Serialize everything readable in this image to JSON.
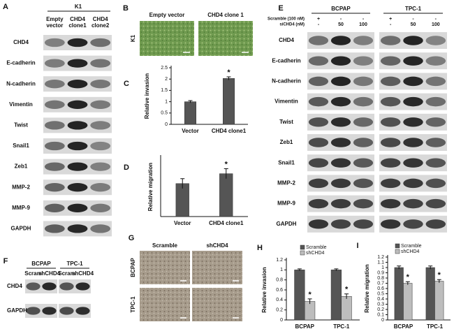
{
  "panels": {
    "a": {
      "label": "A",
      "header": "K1",
      "columns": [
        "Empty vector",
        "CHD4 clone1",
        "CHD4 clone2"
      ],
      "rows": [
        "CHD4",
        "E-cadherin",
        "N-cadherin",
        "Vimentin",
        "Twist",
        "Snail1",
        "Zeb1",
        "MMP-2",
        "MMP-9",
        "GAPDH"
      ]
    },
    "b": {
      "label": "B",
      "columns": [
        "Empty vector",
        "CHD4 clone 1"
      ],
      "row": "K1"
    },
    "e": {
      "label": "E",
      "groups": [
        "BCPAP",
        "TPC-1"
      ],
      "conditions": [
        {
          "name": "Scramble (100 nM)",
          "lanes": [
            "+",
            "-",
            "-"
          ]
        },
        {
          "name": "siCHD4 (nM)",
          "lanes": [
            "-",
            "50",
            "100"
          ]
        }
      ],
      "rows": [
        "CHD4",
        "E-cadherin",
        "N-cadherin",
        "Vimentin",
        "Twist",
        "Zeb1",
        "Snail1",
        "MMP-2",
        "MMP-9",
        "GAPDH"
      ]
    },
    "f": {
      "label": "F",
      "groups": [
        "BCPAP",
        "TPC-1"
      ],
      "lanes": [
        "Scram",
        "shCHD4",
        "Scram",
        "shCHD4"
      ],
      "rows": [
        "CHD4",
        "GAPDH"
      ]
    },
    "g": {
      "label": "G",
      "columns": [
        "Scramble",
        "shCHD4"
      ],
      "rows": [
        "BCPAP",
        "TPC-1"
      ]
    }
  },
  "chart_data": [
    {
      "type": "bar",
      "panel_label": "C",
      "y_label": "Relative invasion",
      "categories": [
        "Vector",
        "CHD4 clone1"
      ],
      "series": [
        {
          "color": "#555555",
          "values": [
            1.0,
            2.03
          ],
          "errors": [
            0.05,
            0.07
          ],
          "annotations": [
            null,
            "*"
          ]
        }
      ],
      "ylim": [
        0,
        2.5
      ],
      "yticks": [
        0,
        0.5,
        1,
        1.5,
        2,
        2.5
      ],
      "legend": false
    },
    {
      "type": "bar",
      "panel_label": "D",
      "y_label": "Relative migration",
      "categories": [
        "Vector",
        "CHD4 clone1"
      ],
      "series": [
        {
          "color": "#555555",
          "values": [
            1.0,
            1.3
          ],
          "errors": [
            0.15,
            0.15
          ],
          "annotations": [
            null,
            "*"
          ]
        }
      ],
      "ylim": [
        0,
        1.8
      ],
      "legend": false
    },
    {
      "type": "bar",
      "panel_label": "H",
      "y_label": "Relative invasion",
      "categories": [
        "BCPAP",
        "TPC-1"
      ],
      "series": [
        {
          "name": "Scramble",
          "color": "#555555",
          "values": [
            1.0,
            1.0
          ],
          "errors": [
            0.02,
            0.02
          ],
          "annotations": [
            null,
            null
          ]
        },
        {
          "name": "shCHD4",
          "color": "#bdbdbd",
          "values": [
            0.37,
            0.47
          ],
          "errors": [
            0.05,
            0.05
          ],
          "annotations": [
            "*",
            "*"
          ]
        }
      ],
      "ylim": [
        0,
        1.2
      ],
      "yticks": [
        0,
        0.2,
        0.4,
        0.6,
        0.8,
        1,
        1.2
      ],
      "legend": true
    },
    {
      "type": "bar",
      "panel_label": "I",
      "y_label": "Relative migration",
      "categories": [
        "BCPAP",
        "TPC-1"
      ],
      "series": [
        {
          "name": "Scramble",
          "color": "#555555",
          "values": [
            1.0,
            1.0
          ],
          "errors": [
            0.03,
            0.03
          ],
          "annotations": [
            null,
            null
          ]
        },
        {
          "name": "shCHD4",
          "color": "#bdbdbd",
          "values": [
            0.7,
            0.74
          ],
          "errors": [
            0.03,
            0.03
          ],
          "annotations": [
            "*",
            "*"
          ]
        }
      ],
      "ylim": [
        0,
        1.2
      ],
      "yticks": [
        0,
        0.1,
        0.2,
        0.3,
        0.4,
        0.5,
        0.6,
        0.7,
        0.8,
        0.9,
        1,
        1.1,
        1.2
      ],
      "legend": true
    }
  ]
}
